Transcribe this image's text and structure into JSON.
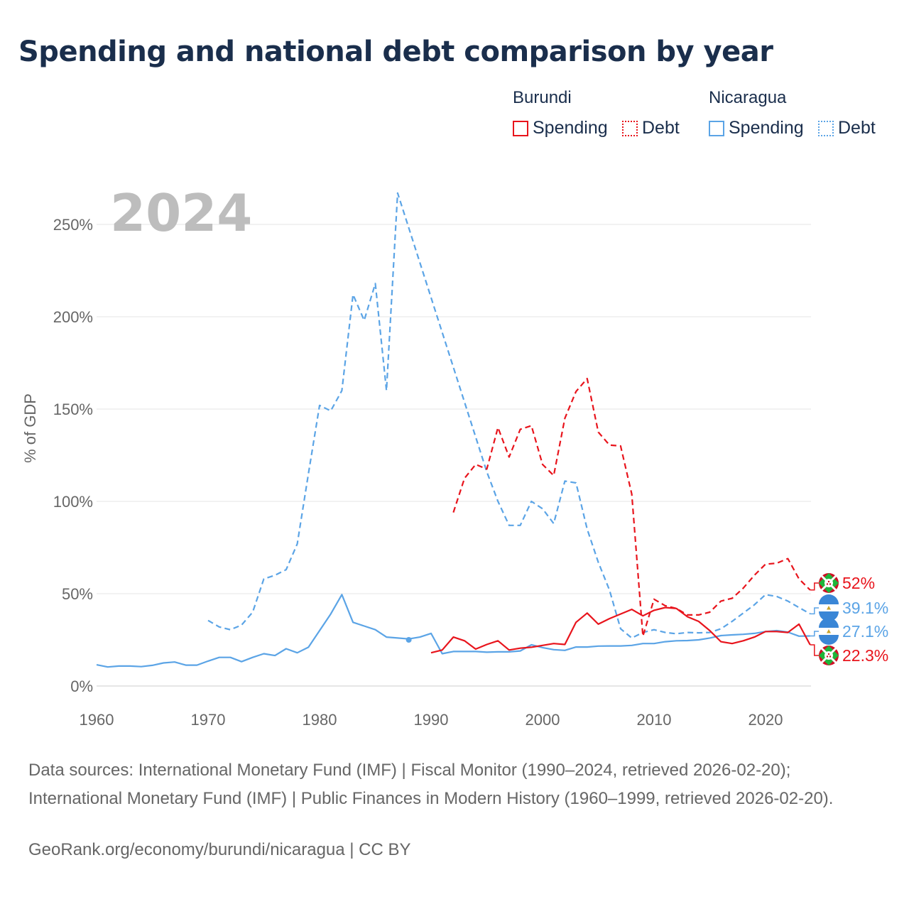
{
  "title": "Spending and national debt comparison by year",
  "legend": {
    "groups": [
      {
        "country": "Burundi",
        "items": [
          {
            "label": "Spending",
            "style": "solid",
            "color": "#e8141c"
          },
          {
            "label": "Debt",
            "style": "dotted",
            "color": "#e8141c"
          }
        ]
      },
      {
        "country": "Nicaragua",
        "items": [
          {
            "label": "Spending",
            "style": "solid",
            "color": "#5ba4e6"
          },
          {
            "label": "Debt",
            "style": "dotted",
            "color": "#5ba4e6"
          }
        ]
      }
    ]
  },
  "chart_data": {
    "type": "line",
    "title": "Spending and national debt comparison by year",
    "xlabel": "",
    "ylabel": "% of GDP",
    "year_watermark": "2024",
    "xlim": [
      1960,
      2024
    ],
    "ylim": [
      0,
      270
    ],
    "x_ticks": [
      1960,
      1970,
      1980,
      1990,
      2000,
      2010,
      2020
    ],
    "y_ticks": [
      0,
      50,
      100,
      150,
      200,
      250
    ],
    "y_tick_labels": [
      "0%",
      "50%",
      "100%",
      "150%",
      "200%",
      "250%"
    ],
    "grid": true,
    "legend_position": "top-right",
    "series": [
      {
        "name": "Nicaragua Debt",
        "country": "Nicaragua",
        "metric": "Debt",
        "color": "#5ba4e6",
        "dash": "dashed",
        "points": [
          [
            1970,
            35.5
          ],
          [
            1971,
            32
          ],
          [
            1972,
            30.5
          ],
          [
            1973,
            33
          ],
          [
            1974,
            40
          ],
          [
            1975,
            58
          ],
          [
            1976,
            60
          ],
          [
            1977,
            63
          ],
          [
            1978,
            77
          ],
          [
            1979,
            115
          ],
          [
            1980,
            152
          ],
          [
            1981,
            149
          ],
          [
            1982,
            160
          ],
          [
            1983,
            212
          ],
          [
            1984,
            198
          ],
          [
            1985,
            218
          ],
          [
            1986,
            160
          ],
          [
            1987,
            267
          ],
          [
            1995,
            116
          ],
          [
            1996,
            100
          ],
          [
            1997,
            87
          ],
          [
            1998,
            87
          ],
          [
            1999,
            100
          ],
          [
            2000,
            96
          ],
          [
            2001,
            88
          ],
          [
            2002,
            111
          ],
          [
            2003,
            110
          ],
          [
            2004,
            85
          ],
          [
            2005,
            67
          ],
          [
            2006,
            52
          ],
          [
            2007,
            31
          ],
          [
            2008,
            26
          ],
          [
            2009,
            29
          ],
          [
            2010,
            30.5
          ],
          [
            2011,
            29
          ],
          [
            2012,
            28.3
          ],
          [
            2013,
            29
          ],
          [
            2014,
            28.8
          ],
          [
            2015,
            29
          ],
          [
            2016,
            31
          ],
          [
            2017,
            35
          ],
          [
            2018,
            39.5
          ],
          [
            2019,
            44
          ],
          [
            2020,
            49.5
          ],
          [
            2021,
            48.5
          ],
          [
            2022,
            46
          ],
          [
            2023,
            42.5
          ],
          [
            2024,
            39.1
          ]
        ],
        "extra_point": [
          1988,
          25
        ],
        "end_label": "39.1%"
      },
      {
        "name": "Nicaragua Spending",
        "country": "Nicaragua",
        "metric": "Spending",
        "color": "#5ba4e6",
        "dash": "solid",
        "points": [
          [
            1960,
            11.5
          ],
          [
            1961,
            10.3
          ],
          [
            1962,
            10.8
          ],
          [
            1963,
            10.8
          ],
          [
            1964,
            10.5
          ],
          [
            1965,
            11.2
          ],
          [
            1966,
            12.5
          ],
          [
            1967,
            13
          ],
          [
            1968,
            11.3
          ],
          [
            1969,
            11.3
          ],
          [
            1970,
            13.5
          ],
          [
            1971,
            15.5
          ],
          [
            1972,
            15.5
          ],
          [
            1973,
            13.2
          ],
          [
            1974,
            15.5
          ],
          [
            1975,
            17.5
          ],
          [
            1976,
            16.5
          ],
          [
            1977,
            20.2
          ],
          [
            1978,
            18
          ],
          [
            1979,
            21
          ],
          [
            1980,
            30
          ],
          [
            1981,
            39
          ],
          [
            1982,
            49.5
          ],
          [
            1983,
            34.5
          ],
          [
            1984,
            32.5
          ],
          [
            1985,
            30.5
          ],
          [
            1986,
            26.5
          ],
          [
            1987,
            26
          ],
          [
            1988,
            25.5
          ],
          [
            1989,
            26.5
          ],
          [
            1990,
            28.5
          ],
          [
            1991,
            17.5
          ],
          [
            1992,
            18.7
          ],
          [
            1993,
            18.7
          ],
          [
            1994,
            18.7
          ],
          [
            1995,
            18.3
          ],
          [
            1996,
            18.5
          ],
          [
            1997,
            18.5
          ],
          [
            1998,
            19
          ],
          [
            1999,
            22.3
          ],
          [
            2000,
            20.8
          ],
          [
            2001,
            19.7
          ],
          [
            2002,
            19.3
          ],
          [
            2003,
            21.1
          ],
          [
            2004,
            21.1
          ],
          [
            2005,
            21.6
          ],
          [
            2006,
            21.7
          ],
          [
            2007,
            21.7
          ],
          [
            2008,
            22
          ],
          [
            2009,
            23
          ],
          [
            2010,
            23
          ],
          [
            2011,
            24
          ],
          [
            2012,
            24.5
          ],
          [
            2013,
            24.6
          ],
          [
            2014,
            25
          ],
          [
            2015,
            26
          ],
          [
            2016,
            27.3
          ],
          [
            2017,
            27.7
          ],
          [
            2018,
            28
          ],
          [
            2019,
            28.5
          ],
          [
            2020,
            29.5
          ],
          [
            2021,
            30
          ],
          [
            2022,
            29.2
          ],
          [
            2023,
            27
          ],
          [
            2024,
            27.1
          ]
        ],
        "end_label": "27.1%"
      },
      {
        "name": "Burundi Debt",
        "country": "Burundi",
        "metric": "Debt",
        "color": "#e8141c",
        "dash": "dashed",
        "points": [
          [
            1992,
            94
          ],
          [
            1993,
            112.5
          ],
          [
            1994,
            120
          ],
          [
            1995,
            117.5
          ],
          [
            1996,
            140
          ],
          [
            1997,
            124
          ],
          [
            1998,
            139
          ],
          [
            1999,
            141
          ],
          [
            2000,
            120
          ],
          [
            2001,
            114
          ],
          [
            2002,
            145
          ],
          [
            2003,
            159.5
          ],
          [
            2004,
            166.5
          ],
          [
            2005,
            137.5
          ],
          [
            2006,
            130.5
          ],
          [
            2007,
            130
          ],
          [
            2008,
            104
          ],
          [
            2009,
            27
          ],
          [
            2010,
            47
          ],
          [
            2011,
            43.5
          ],
          [
            2012,
            42
          ],
          [
            2013,
            38.5
          ],
          [
            2014,
            38.5
          ],
          [
            2015,
            40
          ],
          [
            2016,
            46
          ],
          [
            2017,
            47.5
          ],
          [
            2018,
            53
          ],
          [
            2019,
            60
          ],
          [
            2020,
            66
          ],
          [
            2021,
            66.5
          ],
          [
            2022,
            69
          ],
          [
            2023,
            58
          ],
          [
            2024,
            52
          ]
        ],
        "end_label": "52%"
      },
      {
        "name": "Burundi Spending",
        "country": "Burundi",
        "metric": "Spending",
        "color": "#e8141c",
        "dash": "solid",
        "points": [
          [
            1990,
            18
          ],
          [
            1991,
            19.5
          ],
          [
            1992,
            26.5
          ],
          [
            1993,
            24.5
          ],
          [
            1994,
            20
          ],
          [
            1995,
            22.5
          ],
          [
            1996,
            24.5
          ],
          [
            1997,
            19.5
          ],
          [
            1998,
            20.5
          ],
          [
            1999,
            21
          ],
          [
            2000,
            22
          ],
          [
            2001,
            23
          ],
          [
            2002,
            22.5
          ],
          [
            2003,
            34.5
          ],
          [
            2004,
            39.5
          ],
          [
            2005,
            33.5
          ],
          [
            2006,
            36.5
          ],
          [
            2007,
            39
          ],
          [
            2008,
            41.5
          ],
          [
            2009,
            38
          ],
          [
            2010,
            41
          ],
          [
            2011,
            42.5
          ],
          [
            2012,
            42
          ],
          [
            2013,
            37.5
          ],
          [
            2014,
            35
          ],
          [
            2015,
            30
          ],
          [
            2016,
            24
          ],
          [
            2017,
            23
          ],
          [
            2018,
            24.5
          ],
          [
            2019,
            26.5
          ],
          [
            2020,
            29.5
          ],
          [
            2021,
            29.5
          ],
          [
            2022,
            29
          ],
          [
            2023,
            33.5
          ],
          [
            2024,
            22.3
          ]
        ],
        "end_label": "22.3%"
      }
    ]
  },
  "source_text": "Data sources: International Monetary Fund (IMF) | Fiscal Monitor (1990–2024, retrieved 2026-02-20); International Monetary Fund (IMF) | Public Finances in Modern History (1960–1999, retrieved 2026-02-20).",
  "credit_text": "GeoRank.org/economy/burundi/nicaragua | CC BY"
}
